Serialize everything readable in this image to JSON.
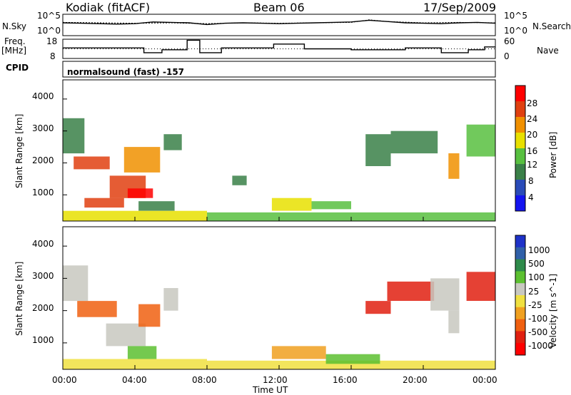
{
  "header": {
    "station": "Kodiak (fitACF)",
    "beam": "Beam 06",
    "date": "17/Sep/2009"
  },
  "left_labels": {
    "nsky": "N.Sky",
    "freq_line1": "Freq.",
    "freq_line2": "[MHz]",
    "cpid": "CPID"
  },
  "right_labels": {
    "nsearch": "N.Search",
    "nave": "Nave"
  },
  "cpid_text": "normalsound (fast) -157",
  "chart_data": [
    {
      "type": "line",
      "panel": "noise",
      "left_ticks": [
        "10^5",
        "10^0"
      ],
      "right_ticks": [
        "10^5",
        "10^0"
      ],
      "series": [
        {
          "name": "N.Sky",
          "x": [
            0,
            1,
            2,
            3,
            4,
            5,
            6,
            7,
            8,
            9,
            10,
            11,
            12,
            13,
            14,
            15,
            16,
            17,
            18,
            19,
            20,
            21,
            22,
            23,
            24
          ],
          "y": [
            3.0,
            2.9,
            2.8,
            2.7,
            2.8,
            3.2,
            3.1,
            3.0,
            2.6,
            2.9,
            3.0,
            2.9,
            2.8,
            2.9,
            3.0,
            3.1,
            3.2,
            3.6,
            3.3,
            3.0,
            2.9,
            2.8,
            3.0,
            3.1,
            2.9
          ]
        },
        {
          "name": "N.Search",
          "x": [
            0,
            2,
            4,
            6,
            8,
            10,
            12,
            14,
            16,
            17,
            18,
            20,
            22,
            24
          ],
          "y": [
            3.1,
            3.0,
            2.9,
            3.0,
            2.8,
            3.0,
            2.9,
            3.0,
            3.1,
            3.7,
            3.3,
            3.0,
            3.1,
            3.0
          ]
        }
      ]
    },
    {
      "type": "line",
      "panel": "frequency",
      "left_ticks": [
        "18",
        "8"
      ],
      "right_ticks": [
        "60",
        "0"
      ],
      "series": [
        {
          "name": "Freq.",
          "x": [
            0,
            4.5,
            4.5,
            5.5,
            5.5,
            6.9,
            6.9,
            7.6,
            7.6,
            8.8,
            8.8,
            9.7,
            9.7,
            11.7,
            11.7,
            13.4,
            13.4,
            14.5,
            14.5,
            16.0,
            16.0,
            19.0,
            19.0,
            21.0,
            21.0,
            22.5,
            22.5,
            23.4,
            23.4,
            24
          ],
          "y": [
            13.5,
            13.5,
            11.0,
            11.0,
            12.5,
            12.5,
            17.5,
            17.5,
            11.0,
            11.0,
            13.5,
            13.5,
            13.5,
            13.5,
            15.5,
            15.5,
            13.0,
            13.0,
            13.0,
            13.0,
            12.5,
            12.5,
            13.5,
            13.5,
            11.0,
            11.0,
            12.5,
            12.5,
            14.0,
            14.0
          ]
        },
        {
          "name": "Nave",
          "x": [
            0,
            6,
            12,
            18,
            24
          ],
          "y": [
            30,
            30,
            30,
            30,
            30
          ]
        }
      ]
    },
    {
      "type": "heatmap",
      "panel": "power",
      "ylabel": "Slant Range [km]",
      "yticks": [
        "1000",
        "2000",
        "3000",
        "4000"
      ],
      "ylim": [
        180,
        4600
      ],
      "xlim": [
        0,
        24
      ],
      "colorbar": {
        "label": "Power [dB]",
        "ticks": [
          "4",
          "8",
          "12",
          "16",
          "20",
          "24",
          "28"
        ],
        "range": [
          0,
          30
        ]
      },
      "colors": [
        "#1414f0",
        "#2a4bb8",
        "#3a8048",
        "#58c040",
        "#e8e000",
        "#f09000",
        "#e04010",
        "#ff0000"
      ],
      "regions": [
        {
          "t0": 0.0,
          "t1": 8.0,
          "r0": 180,
          "r1": 500,
          "v": 15
        },
        {
          "t0": 8.0,
          "t1": 24.0,
          "r0": 180,
          "r1": 450,
          "v": 13
        },
        {
          "t0": 0.0,
          "t1": 1.2,
          "r0": 2300,
          "r1": 3400,
          "v": 10
        },
        {
          "t0": 0.6,
          "t1": 2.6,
          "r0": 1800,
          "r1": 2200,
          "v": 24
        },
        {
          "t0": 2.6,
          "t1": 4.6,
          "r0": 900,
          "r1": 1600,
          "v": 25
        },
        {
          "t0": 3.6,
          "t1": 5.0,
          "r0": 900,
          "r1": 1200,
          "v": 27
        },
        {
          "t0": 1.2,
          "t1": 3.4,
          "r0": 600,
          "r1": 900,
          "v": 26
        },
        {
          "t0": 3.4,
          "t1": 5.4,
          "r0": 1700,
          "r1": 2500,
          "v": 20
        },
        {
          "t0": 4.2,
          "t1": 6.2,
          "r0": 500,
          "r1": 800,
          "v": 10
        },
        {
          "t0": 5.6,
          "t1": 6.6,
          "r0": 2400,
          "r1": 2900,
          "v": 8
        },
        {
          "t0": 9.4,
          "t1": 10.2,
          "r0": 1300,
          "r1": 1600,
          "v": 9
        },
        {
          "t0": 11.6,
          "t1": 13.8,
          "r0": 500,
          "r1": 900,
          "v": 18
        },
        {
          "t0": 13.8,
          "t1": 16.0,
          "r0": 550,
          "r1": 800,
          "v": 12
        },
        {
          "t0": 16.8,
          "t1": 18.2,
          "r0": 1900,
          "r1": 2900,
          "v": 10
        },
        {
          "t0": 18.2,
          "t1": 20.8,
          "r0": 2300,
          "r1": 3000,
          "v": 11
        },
        {
          "t0": 21.4,
          "t1": 22.0,
          "r0": 1500,
          "r1": 2300,
          "v": 19
        },
        {
          "t0": 22.4,
          "t1": 24.0,
          "r0": 2200,
          "r1": 3200,
          "v": 14
        }
      ]
    },
    {
      "type": "heatmap",
      "panel": "velocity",
      "ylabel": "Slant Range [km]",
      "yticks": [
        "1000",
        "2000",
        "3000",
        "4000"
      ],
      "ylim": [
        180,
        4600
      ],
      "xlim": [
        0,
        24
      ],
      "xticks": [
        "00:00",
        "04:00",
        "08:00",
        "12:00",
        "16:00",
        "20:00",
        "00:00"
      ],
      "xlabel": "Time UT",
      "colorbar": {
        "label": "Velocity [m s^-1]",
        "ticks": [
          "1000",
          "500",
          "100",
          "25",
          "-25",
          "-100",
          "-500",
          "-1000"
        ]
      },
      "colors": [
        "#1e32c8",
        "#3060a8",
        "#2e8a4a",
        "#5cc030",
        "#c8c8c0",
        "#f0e040",
        "#f0a020",
        "#f06010",
        "#e02010",
        "#ff0000"
      ],
      "regions": [
        {
          "t0": 0.0,
          "t1": 8.0,
          "r0": 180,
          "r1": 500,
          "v": 5
        },
        {
          "t0": 8.0,
          "t1": 24.0,
          "r0": 180,
          "r1": 450,
          "v": 5
        },
        {
          "t0": 0.0,
          "t1": 1.4,
          "r0": 2300,
          "r1": 3400,
          "v": 4
        },
        {
          "t0": 0.8,
          "t1": 3.0,
          "r0": 1800,
          "r1": 2300,
          "v": 7
        },
        {
          "t0": 2.4,
          "t1": 4.6,
          "r0": 900,
          "r1": 1600,
          "v": 4
        },
        {
          "t0": 3.6,
          "t1": 5.2,
          "r0": 500,
          "r1": 900,
          "v": 3
        },
        {
          "t0": 4.2,
          "t1": 5.4,
          "r0": 1500,
          "r1": 2200,
          "v": 7
        },
        {
          "t0": 5.6,
          "t1": 6.4,
          "r0": 2000,
          "r1": 2700,
          "v": 4
        },
        {
          "t0": 11.6,
          "t1": 14.6,
          "r0": 500,
          "r1": 900,
          "v": 6
        },
        {
          "t0": 14.6,
          "t1": 17.6,
          "r0": 350,
          "r1": 650,
          "v": 3
        },
        {
          "t0": 16.8,
          "t1": 18.2,
          "r0": 1900,
          "r1": 2300,
          "v": 8
        },
        {
          "t0": 18.0,
          "t1": 20.6,
          "r0": 2300,
          "r1": 2900,
          "v": 8
        },
        {
          "t0": 20.4,
          "t1": 22.0,
          "r0": 2000,
          "r1": 3000,
          "v": 4
        },
        {
          "t0": 21.4,
          "t1": 22.0,
          "r0": 1300,
          "r1": 2000,
          "v": 4
        },
        {
          "t0": 22.4,
          "t1": 24.0,
          "r0": 2300,
          "r1": 3200,
          "v": 8
        }
      ]
    }
  ]
}
